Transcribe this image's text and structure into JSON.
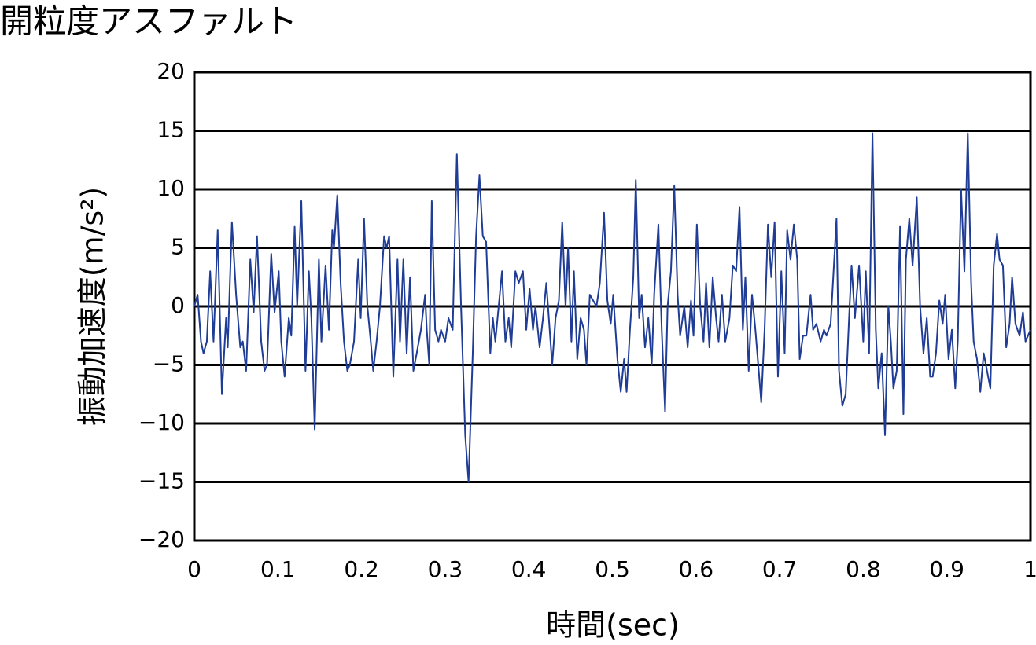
{
  "chart_data": {
    "type": "line",
    "title": "開粒度アスファルト",
    "y_label": "振動加速度(m/s²)",
    "x_label": "時間(sec)",
    "color": "#1f3c96",
    "grid": true,
    "xlim": [
      0,
      1
    ],
    "xticks": [
      0,
      0.1,
      0.2,
      0.3,
      0.4,
      0.5,
      0.6,
      0.7,
      0.8,
      0.9,
      1
    ],
    "ylim": [
      -20,
      20
    ],
    "yticks": [
      20,
      15,
      10,
      5,
      0,
      {
        "value": -5,
        "label": "−5"
      },
      {
        "value": -10,
        "label": "−10"
      },
      {
        "value": -15,
        "label": "−15"
      },
      {
        "value": -20,
        "label": "−20"
      }
    ],
    "x": [
      0,
      0.004,
      0.008,
      0.011,
      0.015,
      0.019,
      0.023,
      0.028,
      0.033,
      0.038,
      0.04,
      0.045,
      0.05,
      0.055,
      0.058,
      0.062,
      0.067,
      0.071,
      0.075,
      0.08,
      0.084,
      0.087,
      0.092,
      0.096,
      0.101,
      0.104,
      0.108,
      0.113,
      0.116,
      0.12,
      0.123,
      0.128,
      0.133,
      0.137,
      0.14,
      0.144,
      0.149,
      0.152,
      0.157,
      0.161,
      0.165,
      0.167,
      0.171,
      0.175,
      0.179,
      0.183,
      0.186,
      0.191,
      0.196,
      0.199,
      0.203,
      0.207,
      0.211,
      0.214,
      0.218,
      0.222,
      0.227,
      0.23,
      0.233,
      0.238,
      0.243,
      0.246,
      0.25,
      0.254,
      0.258,
      0.262,
      0.266,
      0.271,
      0.276,
      0.278,
      0.281,
      0.284,
      0.288,
      0.292,
      0.295,
      0.3,
      0.304,
      0.309,
      0.314,
      0.319,
      0.324,
      0.328,
      0.333,
      0.337,
      0.341,
      0.345,
      0.349,
      0.354,
      0.357,
      0.36,
      0.364,
      0.368,
      0.372,
      0.376,
      0.379,
      0.384,
      0.388,
      0.393,
      0.397,
      0.401,
      0.405,
      0.408,
      0.413,
      0.417,
      0.421,
      0.424,
      0.428,
      0.432,
      0.436,
      0.44,
      0.444,
      0.447,
      0.451,
      0.454,
      0.458,
      0.462,
      0.466,
      0.469,
      0.473,
      0.477,
      0.481,
      0.485,
      0.49,
      0.494,
      0.498,
      0.501,
      0.506,
      0.51,
      0.514,
      0.517,
      0.521,
      0.525,
      0.528,
      0.532,
      0.535,
      0.539,
      0.543,
      0.547,
      0.55,
      0.555,
      0.559,
      0.563,
      0.566,
      0.57,
      0.574,
      0.578,
      0.581,
      0.586,
      0.59,
      0.594,
      0.597,
      0.601,
      0.605,
      0.609,
      0.612,
      0.616,
      0.62,
      0.624,
      0.627,
      0.631,
      0.635,
      0.64,
      0.644,
      0.648,
      0.652,
      0.656,
      0.659,
      0.663,
      0.667,
      0.671,
      0.675,
      0.678,
      0.682,
      0.686,
      0.69,
      0.694,
      0.698,
      0.702,
      0.706,
      0.709,
      0.713,
      0.717,
      0.721,
      0.724,
      0.728,
      0.732,
      0.737,
      0.74,
      0.744,
      0.749,
      0.753,
      0.756,
      0.761,
      0.768,
      0.771,
      0.775,
      0.779,
      0.783,
      0.786,
      0.79,
      0.795,
      0.8,
      0.803,
      0.807,
      0.811,
      0.815,
      0.818,
      0.822,
      0.826,
      0.83,
      0.833,
      0.836,
      0.84,
      0.844,
      0.848,
      0.851,
      0.855,
      0.859,
      0.864,
      0.868,
      0.872,
      0.876,
      0.88,
      0.883,
      0.887,
      0.891,
      0.895,
      0.898,
      0.902,
      0.906,
      0.91,
      0.913,
      0.917,
      0.921,
      0.925,
      0.929,
      0.932,
      0.936,
      0.94,
      0.944,
      0.948,
      0.952,
      0.956,
      0.96,
      0.963,
      0.967,
      0.971,
      0.975,
      0.978,
      0.982,
      0.987,
      0.991,
      0.994,
      1
    ],
    "values": [
      0,
      1,
      -3,
      -4,
      -3,
      3,
      -3,
      6.5,
      -7.5,
      -1,
      -3.5,
      7.2,
      1,
      -3.5,
      -3,
      -5.5,
      4,
      -0.5,
      6,
      -3,
      -5.5,
      -5,
      4.5,
      -0.5,
      3,
      -3,
      -6,
      -1,
      -2.5,
      6.8,
      0,
      9,
      -5.5,
      3,
      -1,
      -10.5,
      4,
      -3,
      3.5,
      -2,
      6.5,
      5,
      9.5,
      2,
      -3,
      -5.5,
      -5,
      -3,
      4,
      -1,
      7.5,
      0,
      -3,
      -5.5,
      -3,
      0,
      6,
      5,
      6,
      -6,
      4,
      -3,
      4,
      -4,
      2.5,
      -5.5,
      -4,
      -2,
      1,
      -2,
      -5,
      9,
      -2,
      -3,
      -2,
      -3,
      -1,
      -2,
      13,
      0,
      -11,
      -15,
      -4,
      6,
      11.2,
      6,
      5.5,
      -4,
      -1,
      -3,
      0,
      3,
      -3,
      -1,
      -3.5,
      3,
      2,
      3,
      -2,
      1.5,
      -2,
      0,
      -3.5,
      -1,
      2,
      -1,
      -5,
      -1,
      0.5,
      7.2,
      0,
      5,
      -3,
      3,
      -4.5,
      -1,
      -2,
      -5,
      1,
      0.5,
      0,
      2,
      8,
      0.5,
      -1.5,
      1,
      -4.5,
      -7.3,
      -4.5,
      -7.3,
      -2,
      2.5,
      10.8,
      -1,
      1,
      -3.5,
      -1,
      -5,
      1,
      7,
      -2,
      -9,
      0,
      3,
      10.3,
      1,
      -2.5,
      0,
      -3.5,
      0.5,
      -2.5,
      7,
      0,
      -3,
      2,
      -3.5,
      2.5,
      -1,
      -3,
      1,
      -3,
      -1,
      3.5,
      3,
      8.5,
      -2,
      2.5,
      -5.5,
      1,
      -2,
      -5.5,
      -8.2,
      -2,
      7,
      2.5,
      7.2,
      -6,
      3,
      -4,
      6.5,
      4,
      7,
      4,
      -4.5,
      -2.5,
      -2.5,
      1,
      -2,
      -1.5,
      -3,
      -2,
      -2.5,
      -1.5,
      7.5,
      -5.5,
      -8.5,
      -7.5,
      -1,
      3.5,
      -1,
      3.5,
      -3,
      3,
      -4,
      14.8,
      -2,
      -7,
      -4,
      -11,
      0,
      -3,
      -7,
      -5.5,
      6.8,
      -9.2,
      4,
      7.5,
      3.5,
      9.3,
      0,
      -4,
      -1,
      -6,
      -6,
      -4,
      0.5,
      -1.5,
      1,
      -4.5,
      -2,
      -7,
      -3,
      10,
      3,
      14.8,
      2,
      -3,
      -4.5,
      -7.3,
      -4,
      -5.5,
      -7,
      3.5,
      6.2,
      4,
      3.5,
      -3.5,
      -1.5,
      2.5,
      -1.5,
      -2.5,
      -0.5,
      -3,
      -2
    ]
  }
}
